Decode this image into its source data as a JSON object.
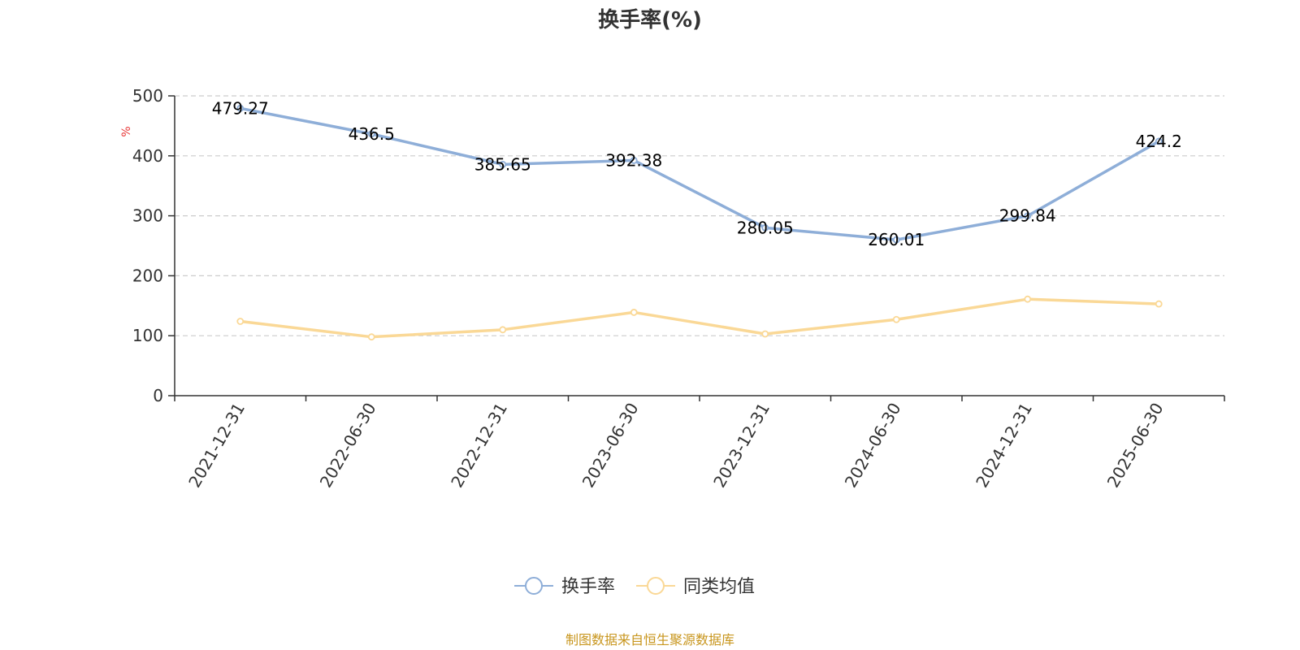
{
  "chart_data": {
    "type": "line",
    "title": "换手率(%)",
    "ylabel": "%",
    "ylim": [
      0,
      500
    ],
    "yticks": [
      0,
      100,
      200,
      300,
      400,
      500
    ],
    "grid": true,
    "legend_position": "bottom",
    "categories": [
      "2021-12-31",
      "2022-06-30",
      "2022-12-31",
      "2023-06-30",
      "2023-12-31",
      "2024-06-30",
      "2024-12-31",
      "2025-06-30"
    ],
    "series": [
      {
        "name": "换手率",
        "color": "#8eaed8",
        "values": [
          479.27,
          436.5,
          385.65,
          392.38,
          280.05,
          260.01,
          299.84,
          424.2
        ],
        "labels": [
          "479.27",
          "436.5",
          "385.65",
          "392.38",
          "280.05",
          "260.01",
          "299.84",
          "424.2"
        ],
        "show_labels": true
      },
      {
        "name": "同类均值",
        "color": "#fad896",
        "values": [
          124,
          98,
          110,
          139,
          103,
          127,
          161,
          153
        ],
        "show_labels": false
      }
    ]
  },
  "footer": {
    "source_text": "制图数据来自恒生聚源数据库",
    "color": "#c8961e"
  },
  "colors": {
    "unit_label": "#e83a3a",
    "axis": "#333333",
    "grid": "#cccccc"
  }
}
